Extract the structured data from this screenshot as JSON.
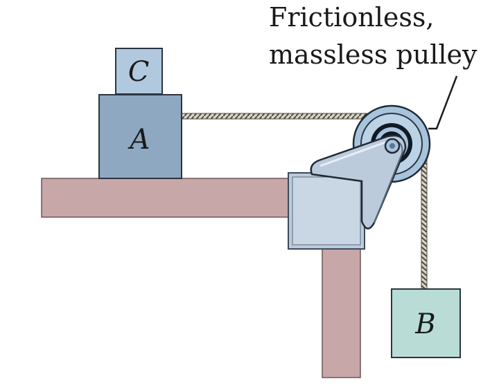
{
  "callout": {
    "line1": "Frictionless,",
    "line2": "massless pulley"
  },
  "blocks": {
    "a": {
      "label": "A",
      "color": "#8ea8c1"
    },
    "b": {
      "label": "B",
      "color": "#b9dcd7"
    },
    "c": {
      "label": "C",
      "color": "#b0c9df"
    }
  },
  "table": {
    "color": "#c8a7a9"
  },
  "pulley": {
    "color": "#a8c4dc",
    "bracket_color": "#bccbdc"
  }
}
